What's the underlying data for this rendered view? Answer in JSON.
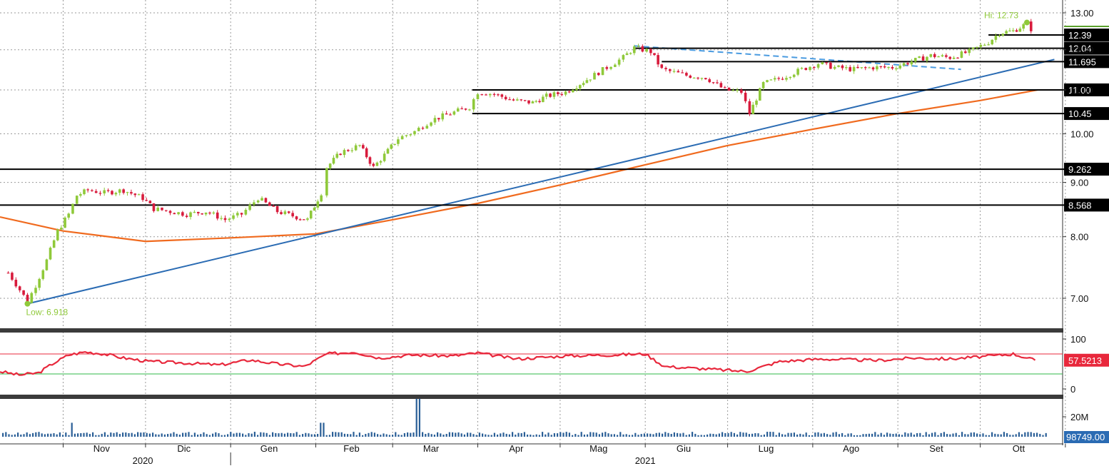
{
  "chart_data": {
    "type": "candlestick",
    "panels": [
      "price",
      "rsi",
      "volume"
    ],
    "x_axis": {
      "months": [
        "Nov",
        "Dic",
        "Gen",
        "Feb",
        "Mar",
        "Apr",
        "Mag",
        "Giu",
        "Lug",
        "Ago",
        "Set",
        "Ott"
      ],
      "years": [
        "2020",
        "2021"
      ],
      "grid": true
    },
    "price_panel": {
      "scale": "log",
      "y_ticks": [
        "13.00",
        "12.00",
        "11.00",
        "10.00",
        "9.00",
        "8.00",
        "7.00"
      ],
      "y_tick_values": [
        13,
        12,
        11,
        10,
        9,
        8,
        7
      ],
      "annotations": {
        "high": "Hi: 12.73",
        "low": "Low: 6.918"
      },
      "candle_colors": {
        "up": "#8fc93a",
        "down": "#d81b3c"
      },
      "close_points": [
        {
          "d": "2020-10-12",
          "v": 7.4
        },
        {
          "d": "2020-10-19",
          "v": 6.95
        },
        {
          "d": "2020-10-22",
          "v": 7.2
        },
        {
          "d": "2020-10-26",
          "v": 7.6
        },
        {
          "d": "2020-10-30",
          "v": 8.1
        },
        {
          "d": "2020-11-03",
          "v": 8.4
        },
        {
          "d": "2020-11-06",
          "v": 8.75
        },
        {
          "d": "2020-11-10",
          "v": 8.85
        },
        {
          "d": "2020-11-16",
          "v": 8.8
        },
        {
          "d": "2020-11-23",
          "v": 8.85
        },
        {
          "d": "2020-11-30",
          "v": 8.7
        },
        {
          "d": "2020-12-04",
          "v": 8.5
        },
        {
          "d": "2020-12-10",
          "v": 8.45
        },
        {
          "d": "2020-12-16",
          "v": 8.4
        },
        {
          "d": "2020-12-23",
          "v": 8.45
        },
        {
          "d": "2020-12-30",
          "v": 8.3
        },
        {
          "d": "2021-01-05",
          "v": 8.4
        },
        {
          "d": "2021-01-11",
          "v": 8.7
        },
        {
          "d": "2021-01-18",
          "v": 8.45
        },
        {
          "d": "2021-01-25",
          "v": 8.35
        },
        {
          "d": "2021-01-29",
          "v": 8.3
        },
        {
          "d": "2021-02-03",
          "v": 8.8
        },
        {
          "d": "2021-02-05",
          "v": 9.3
        },
        {
          "d": "2021-02-10",
          "v": 9.6
        },
        {
          "d": "2021-02-17",
          "v": 9.75
        },
        {
          "d": "2021-02-22",
          "v": 9.3
        },
        {
          "d": "2021-02-26",
          "v": 9.55
        },
        {
          "d": "2021-03-03",
          "v": 9.9
        },
        {
          "d": "2021-03-09",
          "v": 10.05
        },
        {
          "d": "2021-03-15",
          "v": 10.3
        },
        {
          "d": "2021-03-22",
          "v": 10.45
        },
        {
          "d": "2021-03-29",
          "v": 10.6
        },
        {
          "d": "2021-04-01",
          "v": 10.95
        },
        {
          "d": "2021-04-07",
          "v": 10.9
        },
        {
          "d": "2021-04-14",
          "v": 10.75
        },
        {
          "d": "2021-04-21",
          "v": 10.7
        },
        {
          "d": "2021-04-26",
          "v": 10.85
        },
        {
          "d": "2021-05-03",
          "v": 10.95
        },
        {
          "d": "2021-05-07",
          "v": 11.1
        },
        {
          "d": "2021-05-12",
          "v": 11.3
        },
        {
          "d": "2021-05-18",
          "v": 11.55
        },
        {
          "d": "2021-05-24",
          "v": 11.8
        },
        {
          "d": "2021-05-28",
          "v": 12.05
        },
        {
          "d": "2021-06-03",
          "v": 11.95
        },
        {
          "d": "2021-06-07",
          "v": 11.5
        },
        {
          "d": "2021-06-10",
          "v": 11.45
        },
        {
          "d": "2021-06-16",
          "v": 11.35
        },
        {
          "d": "2021-06-23",
          "v": 11.3
        },
        {
          "d": "2021-06-30",
          "v": 11.0
        },
        {
          "d": "2021-07-06",
          "v": 10.95
        },
        {
          "d": "2021-07-09",
          "v": 10.45
        },
        {
          "d": "2021-07-14",
          "v": 11.15
        },
        {
          "d": "2021-07-21",
          "v": 11.3
        },
        {
          "d": "2021-07-28",
          "v": 11.5
        },
        {
          "d": "2021-08-03",
          "v": 11.65
        },
        {
          "d": "2021-08-09",
          "v": 11.55
        },
        {
          "d": "2021-08-16",
          "v": 11.5
        },
        {
          "d": "2021-08-23",
          "v": 11.55
        },
        {
          "d": "2021-08-30",
          "v": 11.55
        },
        {
          "d": "2021-09-06",
          "v": 11.7
        },
        {
          "d": "2021-09-13",
          "v": 11.85
        },
        {
          "d": "2021-09-20",
          "v": 11.8
        },
        {
          "d": "2021-09-27",
          "v": 11.95
        },
        {
          "d": "2021-10-04",
          "v": 12.2
        },
        {
          "d": "2021-10-08",
          "v": 12.45
        },
        {
          "d": "2021-10-13",
          "v": 12.5
        },
        {
          "d": "2021-10-18",
          "v": 12.7
        },
        {
          "d": "2021-10-21",
          "v": 12.4
        }
      ],
      "moving_average": {
        "color": "#f06a1e",
        "points": [
          {
            "d": "2020-10-09",
            "v": 8.35
          },
          {
            "d": "2020-11-01",
            "v": 8.1
          },
          {
            "d": "2020-12-01",
            "v": 7.92
          },
          {
            "d": "2021-01-01",
            "v": 7.98
          },
          {
            "d": "2021-02-01",
            "v": 8.05
          },
          {
            "d": "2021-03-01",
            "v": 8.3
          },
          {
            "d": "2021-04-01",
            "v": 8.6
          },
          {
            "d": "2021-05-01",
            "v": 8.95
          },
          {
            "d": "2021-06-01",
            "v": 9.35
          },
          {
            "d": "2021-07-01",
            "v": 9.75
          },
          {
            "d": "2021-08-01",
            "v": 10.1
          },
          {
            "d": "2021-09-01",
            "v": 10.45
          },
          {
            "d": "2021-10-01",
            "v": 10.75
          },
          {
            "d": "2021-10-22",
            "v": 11.0
          }
        ]
      },
      "trendline": {
        "color": "#2a6bb3",
        "from": {
          "d": "2020-10-19",
          "v": 6.918
        },
        "to": {
          "d": "2021-10-28",
          "v": 11.75
        }
      },
      "dashed_trendline": {
        "color": "#4a9be0",
        "from": {
          "d": "2021-05-28",
          "v": 12.1
        },
        "to": {
          "d": "2021-09-24",
          "v": 11.5
        }
      },
      "levels": [
        {
          "label": "12.39",
          "value": 12.39,
          "from": "2021-10-04"
        },
        {
          "label": "12.04",
          "value": 12.04,
          "from": "2021-05-28"
        },
        {
          "label": "11.695",
          "value": 11.695,
          "from": "2021-06-07"
        },
        {
          "label": "11.00",
          "value": 11.0,
          "from": "2021-03-30"
        },
        {
          "label": "10.45",
          "value": 10.45,
          "from": "2021-03-30"
        },
        {
          "label": "9.262",
          "value": 9.262,
          "from": "2020-10-09"
        },
        {
          "label": "8.568",
          "value": 8.568,
          "from": "2020-10-09"
        }
      ]
    },
    "rsi_panel": {
      "y_ticks": [
        "100",
        "0"
      ],
      "y_tick_values": [
        100,
        0
      ],
      "upper_band": 70,
      "lower_band": 30,
      "last_value": "57.5213",
      "color": "#e8283c",
      "points": [
        {
          "d": "2020-10-09",
          "v": 35
        },
        {
          "d": "2020-10-16",
          "v": 28
        },
        {
          "d": "2020-10-23",
          "v": 32
        },
        {
          "d": "2020-10-28",
          "v": 50
        },
        {
          "d": "2020-11-03",
          "v": 68
        },
        {
          "d": "2020-11-09",
          "v": 74
        },
        {
          "d": "2020-11-16",
          "v": 70
        },
        {
          "d": "2020-11-23",
          "v": 62
        },
        {
          "d": "2020-12-02",
          "v": 55
        },
        {
          "d": "2020-12-15",
          "v": 52
        },
        {
          "d": "2020-12-28",
          "v": 48
        },
        {
          "d": "2021-01-08",
          "v": 58
        },
        {
          "d": "2021-01-18",
          "v": 50
        },
        {
          "d": "2021-01-28",
          "v": 45
        },
        {
          "d": "2021-02-05",
          "v": 70
        },
        {
          "d": "2021-02-15",
          "v": 74
        },
        {
          "d": "2021-02-24",
          "v": 62
        },
        {
          "d": "2021-03-08",
          "v": 68
        },
        {
          "d": "2021-03-23",
          "v": 66
        },
        {
          "d": "2021-04-01",
          "v": 72
        },
        {
          "d": "2021-04-15",
          "v": 60
        },
        {
          "d": "2021-05-03",
          "v": 66
        },
        {
          "d": "2021-05-19",
          "v": 68
        },
        {
          "d": "2021-06-01",
          "v": 70
        },
        {
          "d": "2021-06-08",
          "v": 45
        },
        {
          "d": "2021-06-23",
          "v": 40
        },
        {
          "d": "2021-07-08",
          "v": 35
        },
        {
          "d": "2021-07-20",
          "v": 55
        },
        {
          "d": "2021-08-04",
          "v": 60
        },
        {
          "d": "2021-08-24",
          "v": 57
        },
        {
          "d": "2021-09-07",
          "v": 62
        },
        {
          "d": "2021-09-20",
          "v": 60
        },
        {
          "d": "2021-10-05",
          "v": 66
        },
        {
          "d": "2021-10-13",
          "v": 70
        },
        {
          "d": "2021-10-21",
          "v": 57.5
        }
      ]
    },
    "volume_panel": {
      "y_ticks": [
        "20M"
      ],
      "y_tick_values": [
        20000000
      ],
      "last_value": "98749.00",
      "color": "#2a5f97",
      "spikes": [
        {
          "d": "2020-11-04",
          "v": 14000000
        },
        {
          "d": "2021-02-03",
          "v": 14000000
        },
        {
          "d": "2021-03-10",
          "v": 38000000
        }
      ]
    }
  }
}
